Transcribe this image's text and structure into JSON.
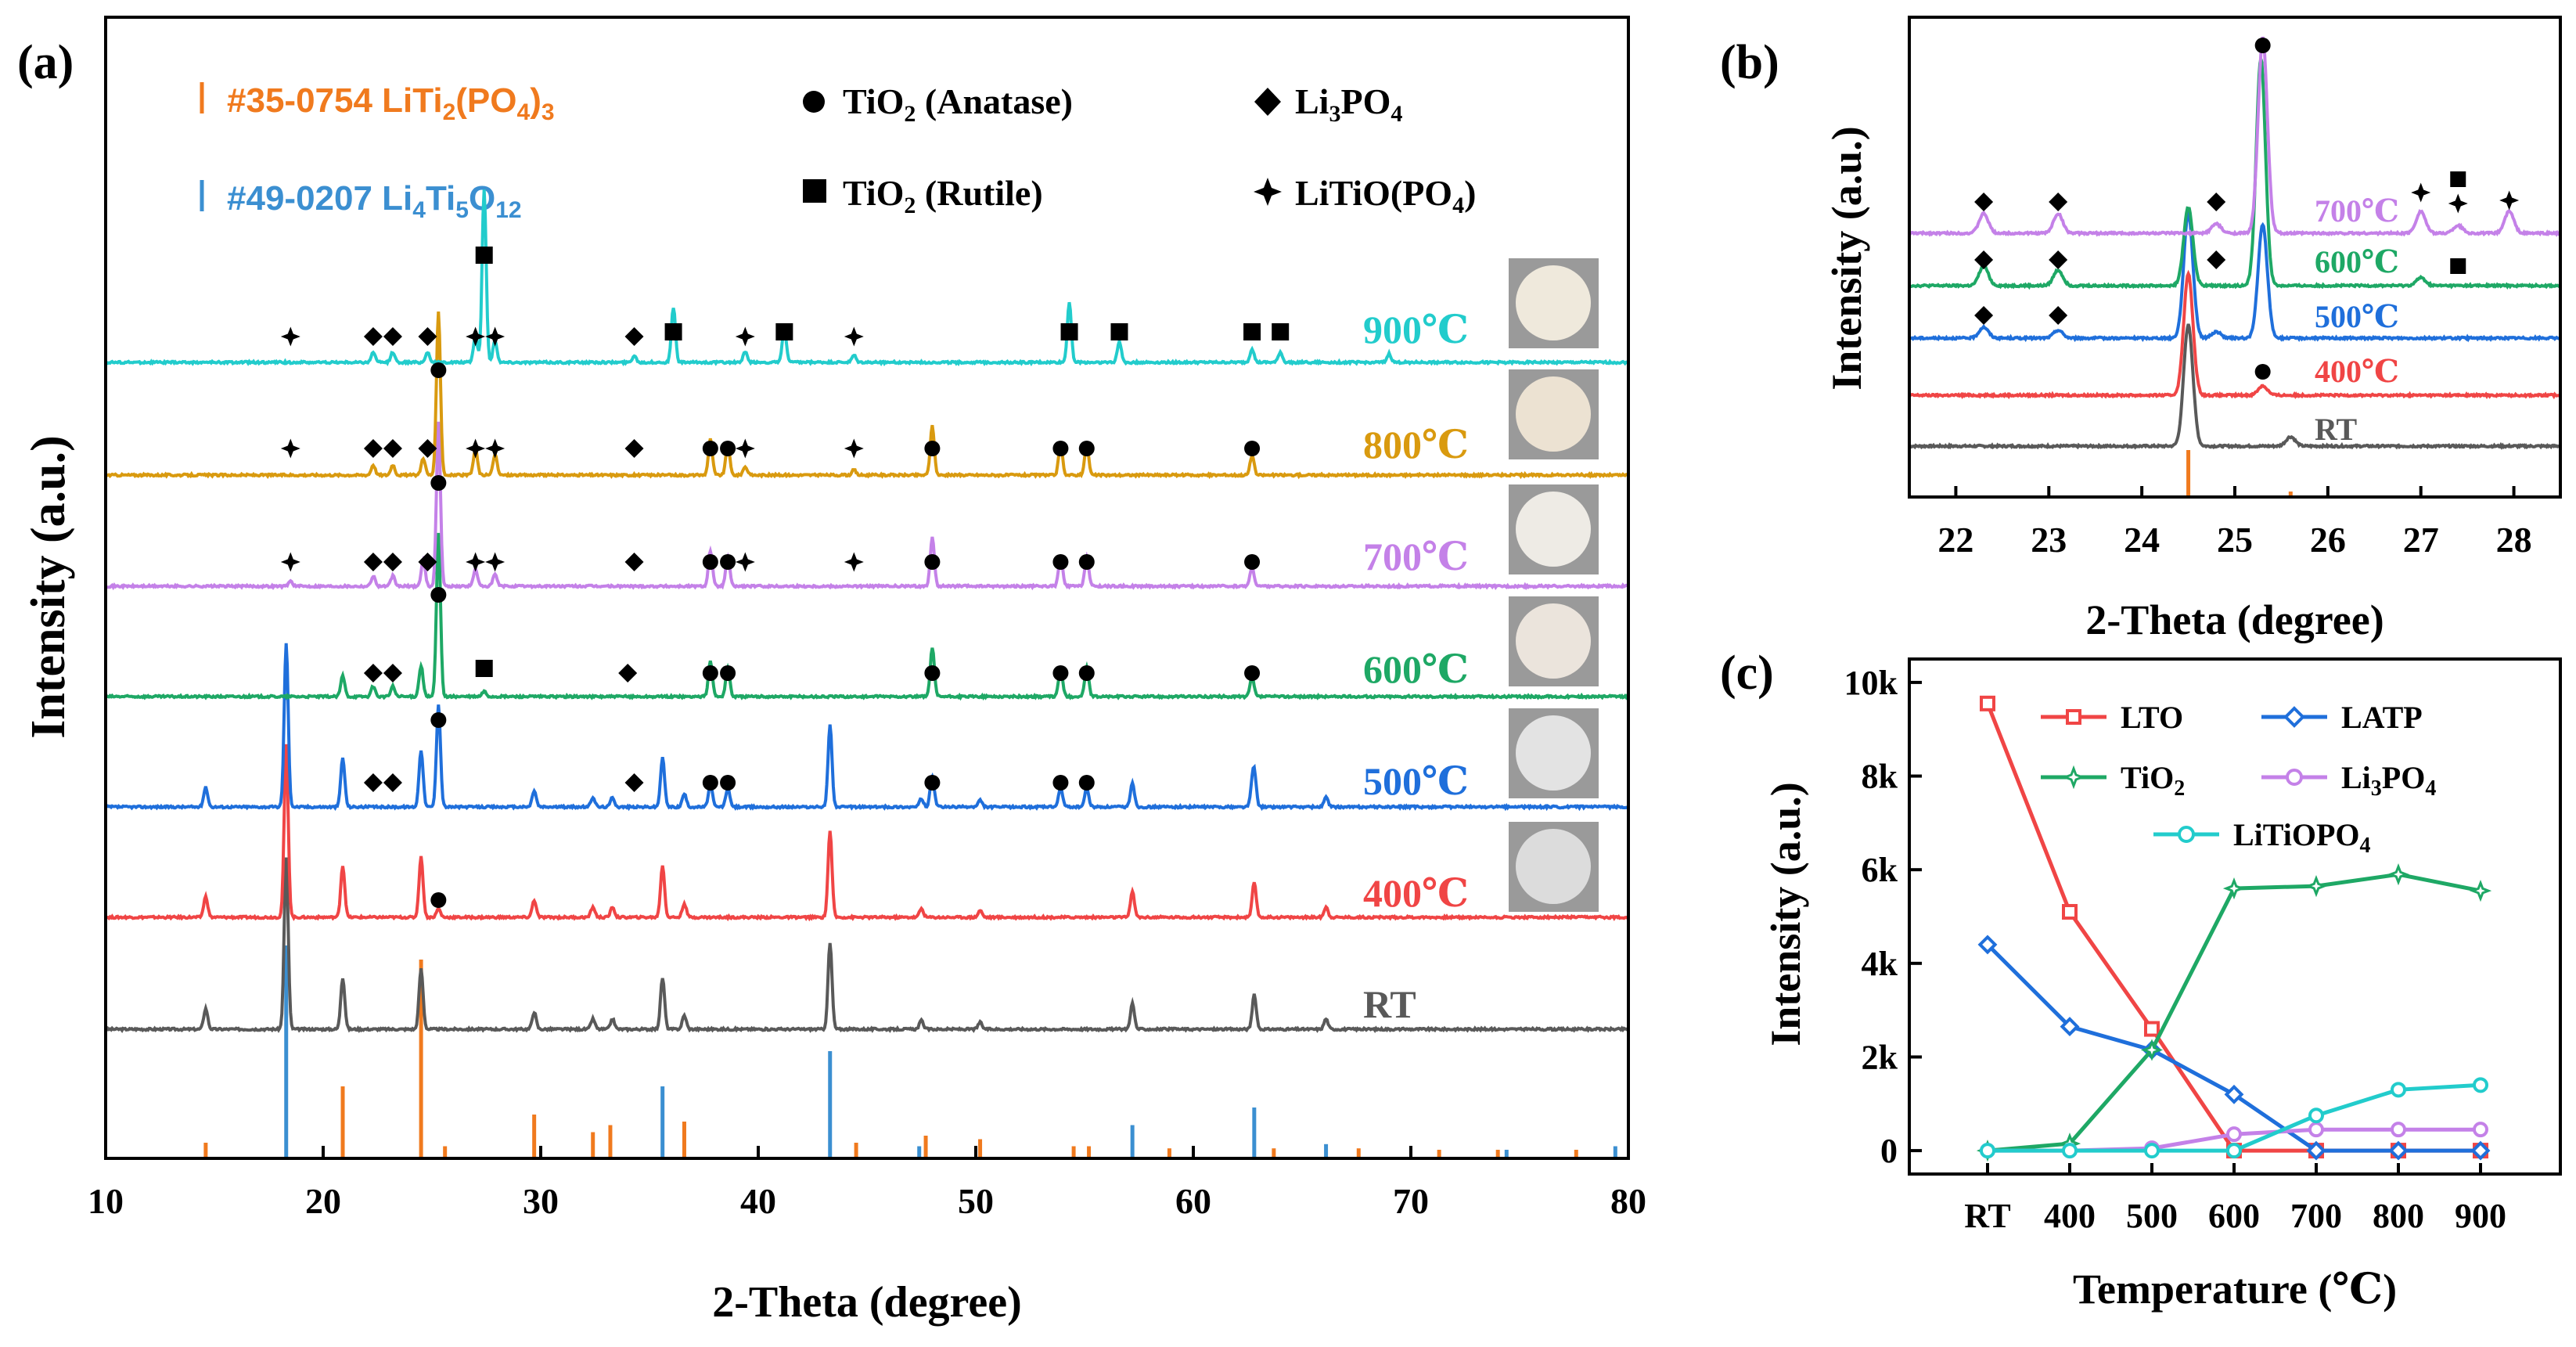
{
  "panel_labels": {
    "a": "(a)",
    "b": "(b)",
    "c": "(c)"
  },
  "colors": {
    "RT": "#595959",
    "400": "#f04545",
    "500": "#1f6fdb",
    "600": "#1ea865",
    "700": "#c481e8",
    "800": "#d99a0f",
    "900": "#22cccc",
    "ltp": "#f07a1e",
    "lto": "#3b8fd1"
  },
  "legend_a": {
    "ref1": {
      "prefix": "#35-0754 LiTi",
      "sub1": "2",
      "mid": "(PO",
      "sub2": "4",
      "end": ")",
      "sub3": "3"
    },
    "ref2": {
      "prefix": "#49-0207 Li",
      "sub1": "4",
      "mid": "Ti",
      "sub2": "5",
      "end": "O",
      "sub3": "12"
    },
    "anatase": {
      "a": "TiO",
      "sub": "2",
      "b": " (Anatase)"
    },
    "rutile": {
      "a": "TiO",
      "sub": "2",
      "b": " (Rutile)"
    },
    "li3po4": {
      "a": "Li",
      "sub": "3",
      "b": "PO",
      "sub2": "4"
    },
    "litiopo4": {
      "a": "LiTiO(PO",
      "sub": "4",
      "b": ")"
    }
  },
  "chart_data": [
    {
      "id": "a",
      "type": "line",
      "title": "",
      "xlabel": "2-Theta (degree)",
      "ylabel": "Intensity (a.u.)",
      "xlim": [
        10,
        80
      ],
      "xticks": [
        10,
        20,
        30,
        40,
        50,
        60,
        70,
        80
      ],
      "series_labels": [
        "RT",
        "400℃",
        "500℃",
        "600℃",
        "700℃",
        "800℃",
        "900℃"
      ],
      "reference_lines": {
        "LiTi2(PO4)3 #35-0754": [
          [
            14.6,
            0.2
          ],
          [
            20.9,
            1.0
          ],
          [
            24.5,
            2.8
          ],
          [
            25.6,
            0.15
          ],
          [
            29.7,
            0.6
          ],
          [
            32.4,
            0.35
          ],
          [
            33.2,
            0.45
          ],
          [
            36.6,
            0.5
          ],
          [
            44.5,
            0.2
          ],
          [
            47.7,
            0.3
          ],
          [
            50.2,
            0.25
          ],
          [
            54.5,
            0.15
          ],
          [
            55.2,
            0.15
          ],
          [
            58.9,
            0.12
          ],
          [
            63.7,
            0.12
          ],
          [
            67.6,
            0.12
          ],
          [
            71.3,
            0.1
          ],
          [
            74.0,
            0.1
          ],
          [
            77.6,
            0.1
          ]
        ],
        "Li4Ti5O12 #49-0207": [
          [
            18.3,
            3.0
          ],
          [
            35.6,
            1.0
          ],
          [
            43.3,
            1.5
          ],
          [
            47.4,
            0.15
          ],
          [
            57.2,
            0.45
          ],
          [
            62.8,
            0.7
          ],
          [
            66.1,
            0.18
          ],
          [
            74.4,
            0.1
          ],
          [
            79.4,
            0.15
          ]
        ]
      },
      "annotations": [
        {
          "series": "400℃",
          "symbol": "anatase",
          "x": [
            25.3
          ]
        },
        {
          "series": "500℃",
          "symbol": "li3po4",
          "x": [
            22.3,
            23.2,
            34.3
          ]
        },
        {
          "series": "500℃",
          "symbol": "anatase",
          "x": [
            25.3,
            37.8,
            38.6,
            48.0,
            53.9,
            55.1
          ]
        },
        {
          "series": "600℃",
          "symbol": "li3po4",
          "x": [
            22.3,
            23.2,
            34.0
          ]
        },
        {
          "series": "600℃",
          "symbol": "anatase",
          "x": [
            25.3,
            37.8,
            38.6,
            48.0,
            53.9,
            55.1,
            62.7
          ]
        },
        {
          "series": "600℃",
          "symbol": "rutile",
          "x": [
            27.4
          ]
        },
        {
          "series": "700℃",
          "symbol": "litiopo4",
          "x": [
            18.5,
            27.0,
            27.9,
            39.4,
            44.4
          ]
        },
        {
          "series": "700℃",
          "symbol": "li3po4",
          "x": [
            22.3,
            23.2,
            24.8,
            34.3
          ]
        },
        {
          "series": "700℃",
          "symbol": "anatase",
          "x": [
            25.3,
            37.8,
            38.6,
            48.0,
            53.9,
            55.1,
            62.7
          ]
        },
        {
          "series": "800℃",
          "symbol": "litiopo4",
          "x": [
            18.5,
            27.0,
            27.9,
            39.4,
            44.4
          ]
        },
        {
          "series": "800℃",
          "symbol": "li3po4",
          "x": [
            22.3,
            23.2,
            24.8,
            34.3
          ]
        },
        {
          "series": "800℃",
          "symbol": "anatase",
          "x": [
            25.3,
            37.8,
            38.6,
            48.0,
            53.9,
            55.1,
            62.7
          ]
        },
        {
          "series": "900℃",
          "symbol": "litiopo4",
          "x": [
            18.5,
            27.0,
            27.9,
            39.4,
            44.4
          ]
        },
        {
          "series": "900℃",
          "symbol": "li3po4",
          "x": [
            22.3,
            23.2,
            24.8,
            34.3
          ]
        },
        {
          "series": "900℃",
          "symbol": "rutile",
          "x": [
            27.4,
            36.1,
            41.2,
            54.3,
            56.6,
            62.7,
            64.0
          ]
        }
      ]
    },
    {
      "id": "b",
      "type": "line",
      "xlabel": "2-Theta (degree)",
      "ylabel": "Intensity (a.u.)",
      "xlim": [
        21.5,
        28.5
      ],
      "xticks": [
        22,
        23,
        24,
        25,
        26,
        27,
        28
      ],
      "series_labels": [
        "RT",
        "400℃",
        "500℃",
        "600℃",
        "700℃"
      ],
      "reference_lines": {
        "LTO": [
          24.5
        ],
        "LATP": [
          25.6
        ]
      }
    },
    {
      "id": "c",
      "type": "line",
      "xlabel": "Temperature (℃)",
      "ylabel": "Intensity (a.u.)",
      "categories": [
        "RT",
        "400",
        "500",
        "600",
        "700",
        "800",
        "900"
      ],
      "ylim": [
        -500,
        10500
      ],
      "yticks": [
        0,
        2000,
        4000,
        6000,
        8000,
        10000
      ],
      "ytick_labels": [
        "0",
        "2k",
        "4k",
        "6k",
        "8k",
        "10k"
      ],
      "series": [
        {
          "name": "LTO",
          "color": "#f04545",
          "marker": "square",
          "values": [
            9550,
            5100,
            2600,
            0,
            0,
            0,
            0
          ]
        },
        {
          "name": "LATP",
          "color": "#1f6fdb",
          "marker": "diamond",
          "values": [
            4400,
            2650,
            2150,
            1200,
            0,
            0,
            0
          ]
        },
        {
          "name": "TiO2",
          "color": "#1ea865",
          "marker": "star",
          "values": [
            0,
            150,
            2150,
            5600,
            5650,
            5900,
            5550
          ]
        },
        {
          "name": "Li3PO4",
          "color": "#c481e8",
          "marker": "circle",
          "values": [
            0,
            0,
            50,
            350,
            450,
            450,
            450
          ]
        },
        {
          "name": "LiTiOPO4",
          "color": "#22cccc",
          "marker": "circle",
          "values": [
            0,
            0,
            0,
            0,
            750,
            1300,
            1400
          ]
        }
      ]
    }
  ]
}
